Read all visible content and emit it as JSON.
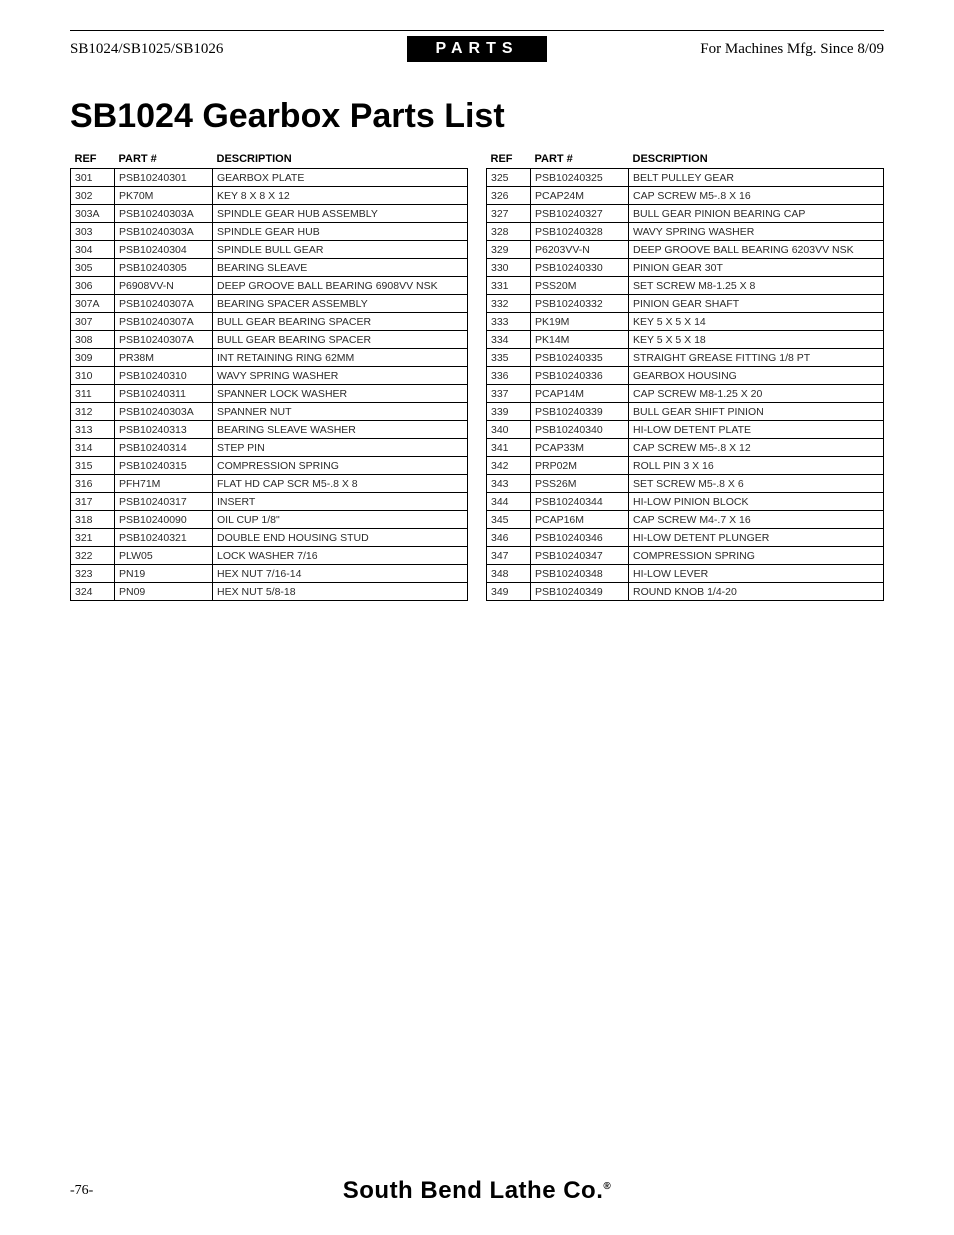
{
  "header": {
    "left": "SB1024/SB1025/SB1026",
    "center": "PARTS",
    "right": "For Machines Mfg. Since 8/09"
  },
  "title": "SB1024 Gearbox Parts List",
  "columns": {
    "ref": "REF",
    "part": "PART #",
    "desc": "DESCRIPTION"
  },
  "left_rows": [
    [
      "301",
      "PSB10240301",
      "GEARBOX PLATE"
    ],
    [
      "302",
      "PK70M",
      "KEY 8 X 8 X 12"
    ],
    [
      "303A",
      "PSB10240303A",
      "SPINDLE GEAR HUB ASSEMBLY"
    ],
    [
      "303",
      "PSB10240303A",
      "SPINDLE GEAR HUB"
    ],
    [
      "304",
      "PSB10240304",
      "SPINDLE BULL GEAR"
    ],
    [
      "305",
      "PSB10240305",
      "BEARING SLEAVE"
    ],
    [
      "306",
      "P6908VV-N",
      "DEEP GROOVE BALL BEARING 6908VV NSK"
    ],
    [
      "307A",
      "PSB10240307A",
      "BEARING SPACER ASSEMBLY"
    ],
    [
      "307",
      "PSB10240307A",
      "BULL GEAR BEARING SPACER"
    ],
    [
      "308",
      "PSB10240307A",
      "BULL GEAR BEARING SPACER"
    ],
    [
      "309",
      "PR38M",
      "INT RETAINING RING 62MM"
    ],
    [
      "310",
      "PSB10240310",
      "WAVY SPRING WASHER"
    ],
    [
      "311",
      "PSB10240311",
      "SPANNER LOCK WASHER"
    ],
    [
      "312",
      "PSB10240303A",
      "SPANNER NUT"
    ],
    [
      "313",
      "PSB10240313",
      "BEARING SLEAVE WASHER"
    ],
    [
      "314",
      "PSB10240314",
      "STEP PIN"
    ],
    [
      "315",
      "PSB10240315",
      "COMPRESSION SPRING"
    ],
    [
      "316",
      "PFH71M",
      "FLAT HD CAP SCR M5-.8 X 8"
    ],
    [
      "317",
      "PSB10240317",
      "INSERT"
    ],
    [
      "318",
      "PSB10240090",
      "OIL CUP 1/8\""
    ],
    [
      "321",
      "PSB10240321",
      "DOUBLE END HOUSING STUD"
    ],
    [
      "322",
      "PLW05",
      "LOCK WASHER 7/16"
    ],
    [
      "323",
      "PN19",
      "HEX NUT 7/16-14"
    ],
    [
      "324",
      "PN09",
      "HEX NUT 5/8-18"
    ]
  ],
  "right_rows": [
    [
      "325",
      "PSB10240325",
      "BELT PULLEY GEAR"
    ],
    [
      "326",
      "PCAP24M",
      "CAP SCREW M5-.8 X 16"
    ],
    [
      "327",
      "PSB10240327",
      "BULL GEAR PINION BEARING CAP"
    ],
    [
      "328",
      "PSB10240328",
      "WAVY SPRING WASHER"
    ],
    [
      "329",
      "P6203VV-N",
      "DEEP GROOVE BALL BEARING 6203VV NSK"
    ],
    [
      "330",
      "PSB10240330",
      "PINION GEAR 30T"
    ],
    [
      "331",
      "PSS20M",
      "SET SCREW M8-1.25 X 8"
    ],
    [
      "332",
      "PSB10240332",
      "PINION GEAR SHAFT"
    ],
    [
      "333",
      "PK19M",
      "KEY 5 X 5 X 14"
    ],
    [
      "334",
      "PK14M",
      "KEY 5 X 5 X 18"
    ],
    [
      "335",
      "PSB10240335",
      "STRAIGHT GREASE FITTING 1/8 PT"
    ],
    [
      "336",
      "PSB10240336",
      "GEARBOX HOUSING"
    ],
    [
      "337",
      "PCAP14M",
      "CAP SCREW M8-1.25 X 20"
    ],
    [
      "339",
      "PSB10240339",
      "BULL GEAR SHIFT PINION"
    ],
    [
      "340",
      "PSB10240340",
      "HI-LOW DETENT PLATE"
    ],
    [
      "341",
      "PCAP33M",
      "CAP SCREW M5-.8 X 12"
    ],
    [
      "342",
      "PRP02M",
      "ROLL PIN 3 X 16"
    ],
    [
      "343",
      "PSS26M",
      "SET SCREW M5-.8 X 6"
    ],
    [
      "344",
      "PSB10240344",
      "HI-LOW PINION BLOCK"
    ],
    [
      "345",
      "PCAP16M",
      "CAP SCREW M4-.7 X 16"
    ],
    [
      "346",
      "PSB10240346",
      "HI-LOW DETENT PLUNGER"
    ],
    [
      "347",
      "PSB10240347",
      "COMPRESSION SPRING"
    ],
    [
      "348",
      "PSB10240348",
      "HI-LOW LEVER"
    ],
    [
      "349",
      "PSB10240349",
      "ROUND KNOB 1/4-20"
    ]
  ],
  "footer": {
    "page": "-76-",
    "brand": "South Bend Lathe Co.",
    "reg": "®"
  }
}
